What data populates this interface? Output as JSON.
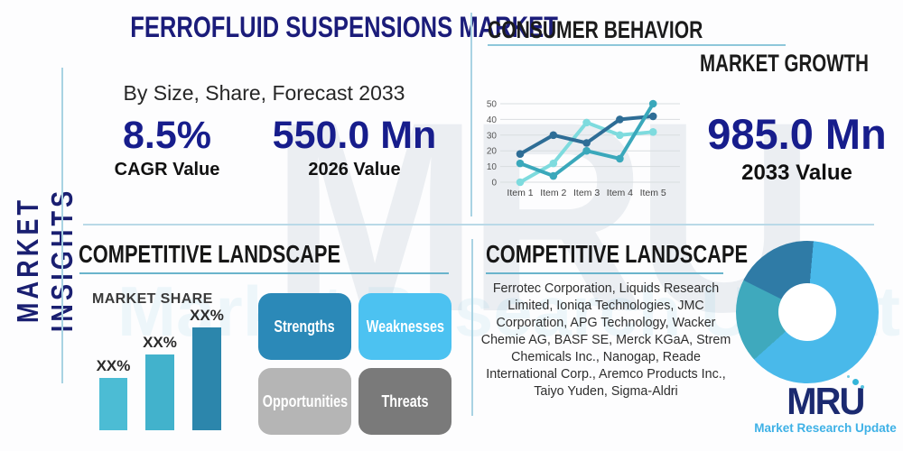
{
  "watermark": {
    "text": "MRU",
    "subtext": "Market Research Update"
  },
  "sidebar": {
    "vertical_label": "MARKET INSIGHTS"
  },
  "top_left": {
    "title": "FERROFLUID SUSPENSIONS MARKET",
    "subtitle": "By Size, Share, Forecast 2033",
    "stats": [
      {
        "value": "8.5%",
        "label": "CAGR Value"
      },
      {
        "value": "550.0 Mn",
        "label": "2026 Value"
      }
    ]
  },
  "top_right": {
    "heading": "CONSUMER BEHAVIOR",
    "subheading": "MARKET GROWTH",
    "stat": {
      "value": "985.0 Mn",
      "label": "2033 Value"
    }
  },
  "bottom_left": {
    "heading": "COMPETITIVE LANDSCAPE",
    "chart_label": "MARKET SHARE",
    "swot": [
      {
        "label": "Strengths",
        "color": "#2b89b8"
      },
      {
        "label": "Weaknesses",
        "color": "#4cc2f1"
      },
      {
        "label": "Opportunities",
        "color": "#b5b5b5"
      },
      {
        "label": "Threats",
        "color": "#7a7a7a"
      }
    ]
  },
  "bottom_right": {
    "heading": "COMPETITIVE LANDSCAPE",
    "companies": "Ferrotec Corporation, Liquids Research Limited, Ioniqa Technologies, JMC Corporation, APG Technology, Wacker Chemie AG, BASF SE, Merck KGaA, Strem Chemicals Inc., Nanogap, Reade International Corp., Aremco Products Inc., Taiyo Yuden, Sigma-Aldri"
  },
  "logo": {
    "text": "MRU",
    "tagline": "Market Research Update"
  },
  "colors": {
    "navy_accent": "#1b1c7a",
    "stat_navy": "#171d8c",
    "divider_blue": "#a9d3e3",
    "underline_teal": "#6ab4cc"
  },
  "chart_data": [
    {
      "type": "line",
      "title": "Consumer Behavior trend",
      "x": [
        "Item 1",
        "Item 2",
        "Item 3",
        "Item 4",
        "Item 5"
      ],
      "series": [
        {
          "name": "light-cyan-series",
          "color": "#7edbde",
          "values": [
            0,
            12,
            38,
            30,
            32
          ]
        },
        {
          "name": "dark-blue-series",
          "color": "#2e6d96",
          "values": [
            18,
            30,
            25,
            40,
            42
          ]
        },
        {
          "name": "teal-series",
          "color": "#3aa8bb",
          "values": [
            12,
            4,
            20,
            15,
            50
          ]
        }
      ],
      "ylim": [
        0,
        50
      ],
      "yticks": [
        0,
        10,
        20,
        30,
        40,
        50
      ],
      "grid": true,
      "legend": "none"
    },
    {
      "type": "bar",
      "title": "MARKET SHARE",
      "categories": [
        "bar-1",
        "bar-2",
        "bar-3"
      ],
      "values": [
        58,
        84,
        114
      ],
      "value_unit": "relative-height-px",
      "value_labels": [
        "XX%",
        "XX%",
        "XX%"
      ],
      "colors": [
        "#4cbcd4",
        "#42b2cc",
        "#2c86ac"
      ],
      "ylabel": "",
      "xlabel": ""
    },
    {
      "type": "pie",
      "title": "competitive share donut",
      "donut": true,
      "start_angle_deg": 5,
      "slices": [
        {
          "name": "primary-share",
          "color": "#49b9ea",
          "pct": 62
        },
        {
          "name": "secondary-share",
          "color": "#3fa9bd",
          "pct": 19
        },
        {
          "name": "tertiary-share",
          "color": "#2f7ba6",
          "pct": 19
        }
      ]
    }
  ]
}
